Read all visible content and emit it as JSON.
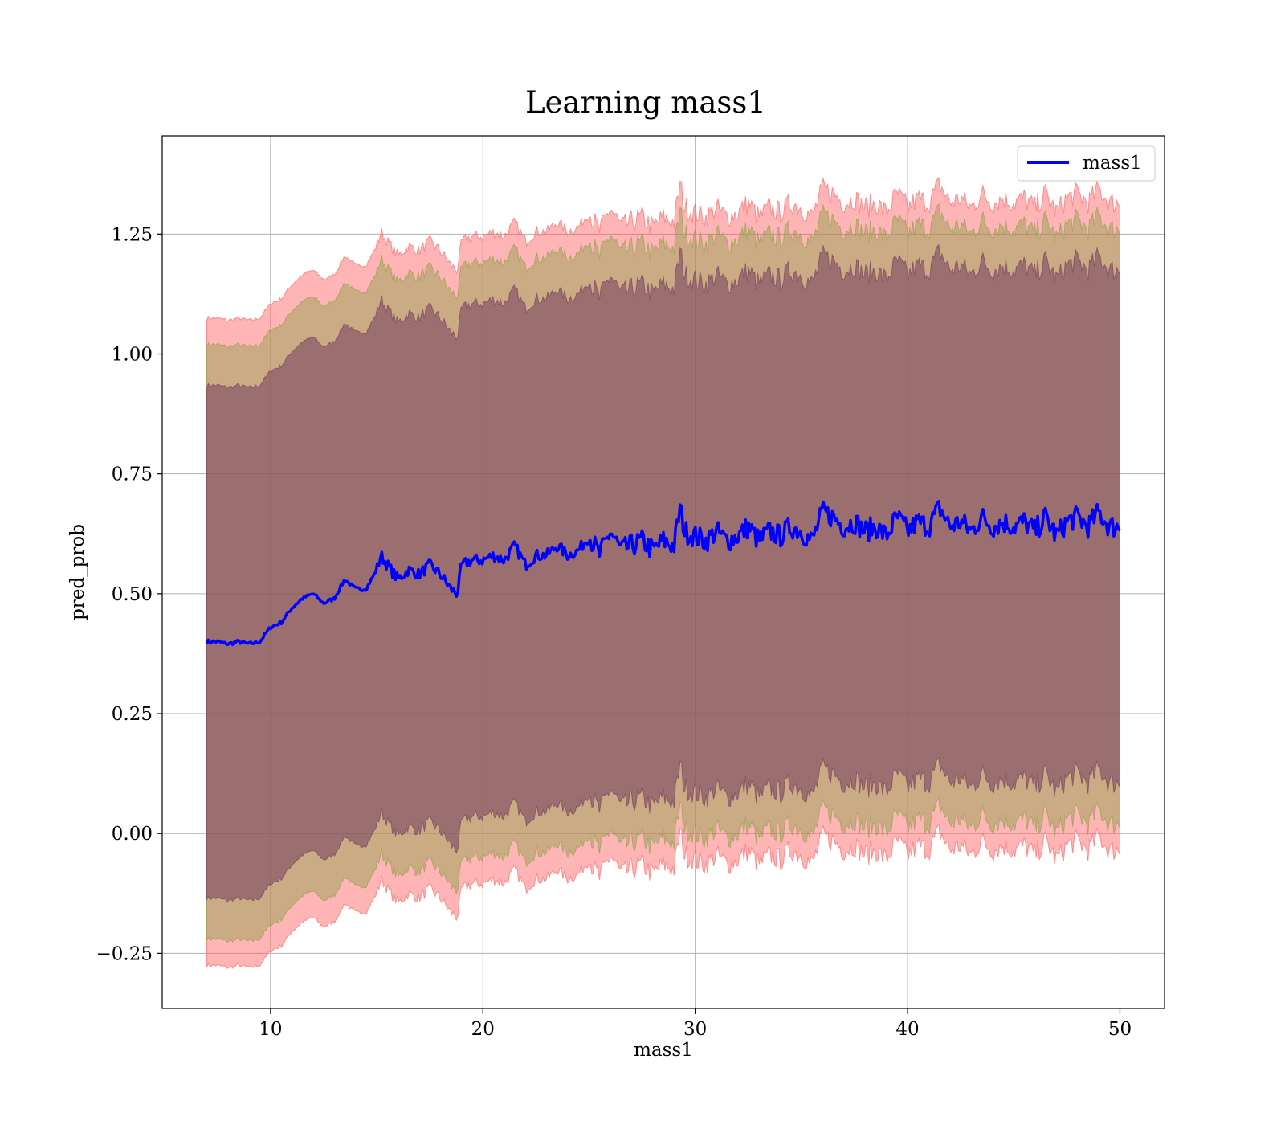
{
  "chart_data": {
    "type": "line",
    "title": "Learning mass1",
    "xlabel": "mass1",
    "ylabel": "pred_prob",
    "xlim": [
      4.9,
      52.1
    ],
    "ylim": [
      -0.365,
      1.455
    ],
    "x_ticks": [
      10,
      20,
      30,
      40,
      50
    ],
    "x_tick_labels": [
      "10",
      "20",
      "30",
      "40",
      "50"
    ],
    "y_ticks": [
      -0.25,
      0.0,
      0.25,
      0.5,
      0.75,
      1.0,
      1.25
    ],
    "y_tick_labels": [
      "−0.25",
      "0.00",
      "0.25",
      "0.50",
      "0.75",
      "1.00",
      "1.25"
    ],
    "grid": true,
    "legend": {
      "position": "top-right",
      "entries": [
        "mass1"
      ]
    },
    "colors": {
      "line": "#0000ff",
      "band_outer": "#ff5a5a",
      "band_middle": "#8ca04a",
      "band_inner": "#743c5e",
      "grid": "#b0b0b0"
    },
    "x": [
      7.0,
      7.5,
      8.0,
      8.5,
      9.0,
      9.5,
      10.0,
      10.5,
      11.0,
      11.5,
      12.0,
      12.5,
      13.0,
      13.5,
      14.0,
      14.5,
      15.0,
      15.2,
      15.5,
      16.0,
      16.5,
      17.0,
      17.5,
      18.0,
      18.5,
      18.8,
      19.0,
      19.5,
      20.0,
      20.5,
      21.0,
      21.5,
      22.0,
      22.5,
      23.0,
      23.5,
      24.0,
      24.5,
      25.0,
      25.5,
      26.0,
      26.5,
      27.0,
      27.5,
      28.0,
      28.5,
      29.0,
      29.3,
      29.5,
      30.0,
      30.5,
      31.0,
      31.5,
      32.0,
      32.5,
      33.0,
      33.5,
      34.0,
      34.5,
      35.0,
      35.5,
      36.0,
      36.5,
      37.0,
      37.5,
      38.0,
      38.5,
      39.0,
      39.5,
      40.0,
      40.5,
      41.0,
      41.5,
      42.0,
      42.5,
      43.0,
      43.5,
      44.0,
      44.5,
      45.0,
      45.5,
      46.0,
      46.5,
      47.0,
      47.5,
      48.0,
      48.5,
      49.0,
      49.5,
      50.0
    ],
    "series": [
      {
        "name": "mass1",
        "values": [
          0.4,
          0.4,
          0.395,
          0.4,
          0.395,
          0.4,
          0.43,
          0.44,
          0.47,
          0.49,
          0.5,
          0.48,
          0.49,
          0.53,
          0.51,
          0.51,
          0.55,
          0.58,
          0.56,
          0.53,
          0.55,
          0.54,
          0.56,
          0.54,
          0.51,
          0.5,
          0.56,
          0.57,
          0.57,
          0.58,
          0.57,
          0.6,
          0.56,
          0.58,
          0.58,
          0.6,
          0.58,
          0.59,
          0.62,
          0.58,
          0.63,
          0.59,
          0.6,
          0.61,
          0.59,
          0.61,
          0.6,
          0.68,
          0.63,
          0.62,
          0.61,
          0.63,
          0.61,
          0.62,
          0.64,
          0.61,
          0.63,
          0.62,
          0.64,
          0.63,
          0.61,
          0.67,
          0.66,
          0.64,
          0.65,
          0.63,
          0.64,
          0.62,
          0.66,
          0.63,
          0.65,
          0.64,
          0.68,
          0.64,
          0.65,
          0.63,
          0.66,
          0.64,
          0.65,
          0.64,
          0.65,
          0.63,
          0.66,
          0.62,
          0.65,
          0.66,
          0.64,
          0.67,
          0.64,
          0.64
        ]
      }
    ]
  }
}
